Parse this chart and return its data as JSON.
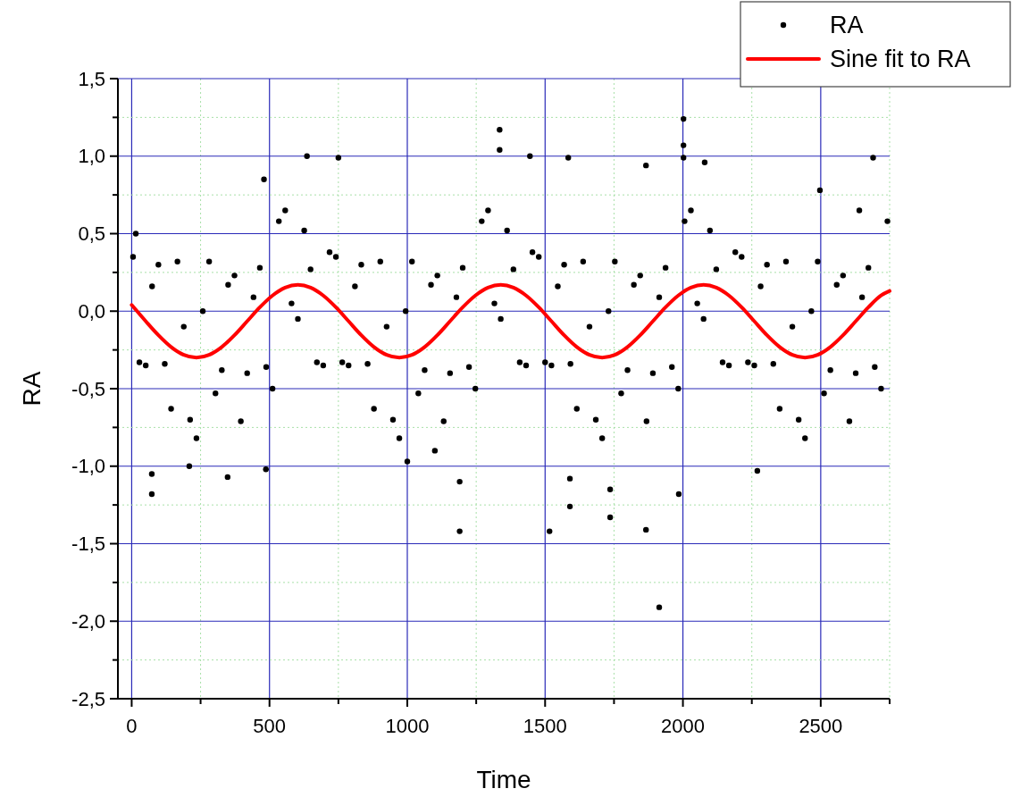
{
  "chart_data": {
    "type": "scatter",
    "xlabel": "Time",
    "ylabel": "RA",
    "xlim": [
      -50,
      2750
    ],
    "ylim": [
      -2.5,
      1.5
    ],
    "xticks": [
      0,
      {
        "value": 250,
        "label": null
      },
      500,
      {
        "value": 750,
        "label": null
      },
      1000,
      {
        "value": 1250,
        "label": null
      },
      1500,
      {
        "value": 1750,
        "label": null
      },
      2000,
      {
        "value": 2250,
        "label": null
      },
      2500,
      {
        "value": 2750,
        "label": null
      }
    ],
    "yticks": [
      {
        "value": -2.5,
        "label": "-2,5"
      },
      {
        "value": -2.25,
        "label": null
      },
      {
        "value": -2,
        "label": "-2,0"
      },
      {
        "value": -1.75,
        "label": null
      },
      {
        "value": -1.5,
        "label": "-1,5"
      },
      {
        "value": -1.25,
        "label": null
      },
      {
        "value": -1,
        "label": "-1,0"
      },
      {
        "value": -0.75,
        "label": null
      },
      {
        "value": -0.5,
        "label": "-0,5"
      },
      {
        "value": -0.25,
        "label": null
      },
      {
        "value": 0,
        "label": "0,0"
      },
      {
        "value": 0.25,
        "label": null
      },
      {
        "value": 0.5,
        "label": "0,5"
      },
      {
        "value": 0.75,
        "label": null
      },
      {
        "value": 1,
        "label": "1,0"
      },
      {
        "value": 1.25,
        "label": null
      },
      {
        "value": 1.5,
        "label": "1,5"
      }
    ],
    "grid": true,
    "legend": "top right",
    "series": [
      {
        "name": "RA",
        "color": "#000000",
        "marker": "circle",
        "x": [
          5,
          28,
          51,
          74,
          97,
          120,
          143,
          166,
          189,
          212,
          235,
          258,
          281,
          304,
          327,
          350,
          373,
          396,
          419,
          442,
          465,
          488,
          511,
          534,
          557,
          580,
          603,
          626,
          649,
          672,
          695,
          718,
          741,
          764,
          787,
          810,
          833,
          856,
          879,
          902,
          925,
          948,
          971,
          994,
          1017,
          1040,
          1063,
          1086,
          1109,
          1132,
          1155,
          1178,
          1201,
          1224,
          1247,
          1270,
          1293,
          1316,
          1339,
          1362,
          1385,
          1408,
          1431,
          1454,
          1477,
          1500,
          1523,
          1546,
          1569,
          1592,
          1615,
          1638,
          1661,
          1684,
          1707,
          1730,
          1753,
          1776,
          1799,
          1822,
          1845,
          1868,
          1891,
          1914,
          1937,
          1960,
          1983,
          2006,
          2029,
          2052,
          2075,
          2098,
          2121,
          2144,
          2167,
          2190,
          2213,
          2236,
          2259,
          2282,
          2305,
          2328,
          2351,
          2374,
          2397,
          2420,
          2443,
          2466,
          2489,
          2512,
          2535,
          2558,
          2581,
          2604,
          2627,
          2650,
          2673,
          2696,
          2719,
          2742,
          73,
          73,
          209,
          348,
          487,
          636,
          750,
          480,
          1190,
          1190,
          1335,
          1335,
          1445,
          1584,
          1516,
          1590,
          1590,
          1736,
          1736,
          2002,
          2002,
          2002,
          1866,
          2079,
          1985,
          1866,
          1914,
          2690,
          2497,
          2270,
          15,
          1000,
          1100,
          2640
        ],
        "values": [
          0.35,
          -0.33,
          -0.35,
          0.16,
          0.3,
          -0.34,
          -0.63,
          0.32,
          -0.1,
          -0.7,
          -0.82,
          0.0,
          0.32,
          -0.53,
          -0.38,
          0.17,
          0.23,
          -0.71,
          -0.4,
          0.09,
          0.28,
          -0.36,
          -0.5,
          0.58,
          0.65,
          0.05,
          -0.05,
          0.52,
          0.27,
          -0.33,
          -0.35,
          0.38,
          0.35,
          -0.33,
          -0.35,
          0.16,
          0.3,
          -0.34,
          -0.63,
          0.32,
          -0.1,
          -0.7,
          -0.82,
          0.0,
          0.32,
          -0.53,
          -0.38,
          0.17,
          0.23,
          -0.71,
          -0.4,
          0.09,
          0.28,
          -0.36,
          -0.5,
          0.58,
          0.65,
          0.05,
          -0.05,
          0.52,
          0.27,
          -0.33,
          -0.35,
          0.38,
          0.35,
          -0.33,
          -0.35,
          0.16,
          0.3,
          -0.34,
          -0.63,
          0.32,
          -0.1,
          -0.7,
          -0.82,
          0.0,
          0.32,
          -0.53,
          -0.38,
          0.17,
          0.23,
          -0.71,
          -0.4,
          0.09,
          0.28,
          -0.36,
          -0.5,
          0.58,
          0.65,
          0.05,
          -0.05,
          0.52,
          0.27,
          -0.33,
          -0.35,
          0.38,
          0.35,
          -0.33,
          -0.35,
          0.16,
          0.3,
          -0.34,
          -0.63,
          0.32,
          -0.1,
          -0.7,
          -0.82,
          0.0,
          0.32,
          -0.53,
          -0.38,
          0.17,
          0.23,
          -0.71,
          -0.4,
          0.09,
          0.28,
          -0.36,
          -0.5,
          0.58,
          -1.18,
          -1.05,
          -1.0,
          -1.07,
          -1.02,
          1.0,
          0.99,
          0.85,
          -1.1,
          -1.42,
          1.17,
          1.04,
          1.0,
          0.99,
          -1.42,
          -1.08,
          -1.26,
          -1.15,
          -1.33,
          1.24,
          1.07,
          0.99,
          0.94,
          0.96,
          -1.18,
          -1.41,
          -1.91,
          0.99,
          0.78,
          -1.03,
          0.5,
          -0.97,
          -0.9,
          0.65
        ]
      },
      {
        "type": "line",
        "name": "Sine fit to RA",
        "color": "#ff0000",
        "x": [
          0,
          51,
          97,
          143,
          189,
          235,
          281,
          327,
          373,
          419,
          465,
          511,
          557,
          603,
          649,
          695,
          741,
          787,
          833,
          879,
          925,
          971,
          1017,
          1063,
          1109,
          1155,
          1201,
          1247,
          1293,
          1339,
          1385,
          1431,
          1477,
          1523,
          1569,
          1615,
          1661,
          1707,
          1753,
          1799,
          1845,
          1891,
          1937,
          1983,
          2029,
          2075,
          2121,
          2167,
          2213,
          2259,
          2305,
          2351,
          2397,
          2443,
          2489,
          2535,
          2581,
          2627,
          2673,
          2719,
          2750
        ],
        "values": [
          0.04,
          -0.065,
          -0.155,
          -0.231,
          -0.282,
          -0.3,
          -0.282,
          -0.231,
          -0.155,
          -0.065,
          0.025,
          0.101,
          0.152,
          0.17,
          0.152,
          0.101,
          0.025,
          -0.065,
          -0.155,
          -0.231,
          -0.282,
          -0.3,
          -0.282,
          -0.231,
          -0.155,
          -0.065,
          0.025,
          0.101,
          0.152,
          0.17,
          0.152,
          0.101,
          0.025,
          -0.065,
          -0.155,
          -0.231,
          -0.282,
          -0.3,
          -0.282,
          -0.231,
          -0.155,
          -0.065,
          0.025,
          0.101,
          0.152,
          0.17,
          0.152,
          0.101,
          0.025,
          -0.065,
          -0.155,
          -0.231,
          -0.282,
          -0.3,
          -0.282,
          -0.231,
          -0.155,
          -0.065,
          0.025,
          0.101,
          0.13
        ]
      }
    ]
  }
}
